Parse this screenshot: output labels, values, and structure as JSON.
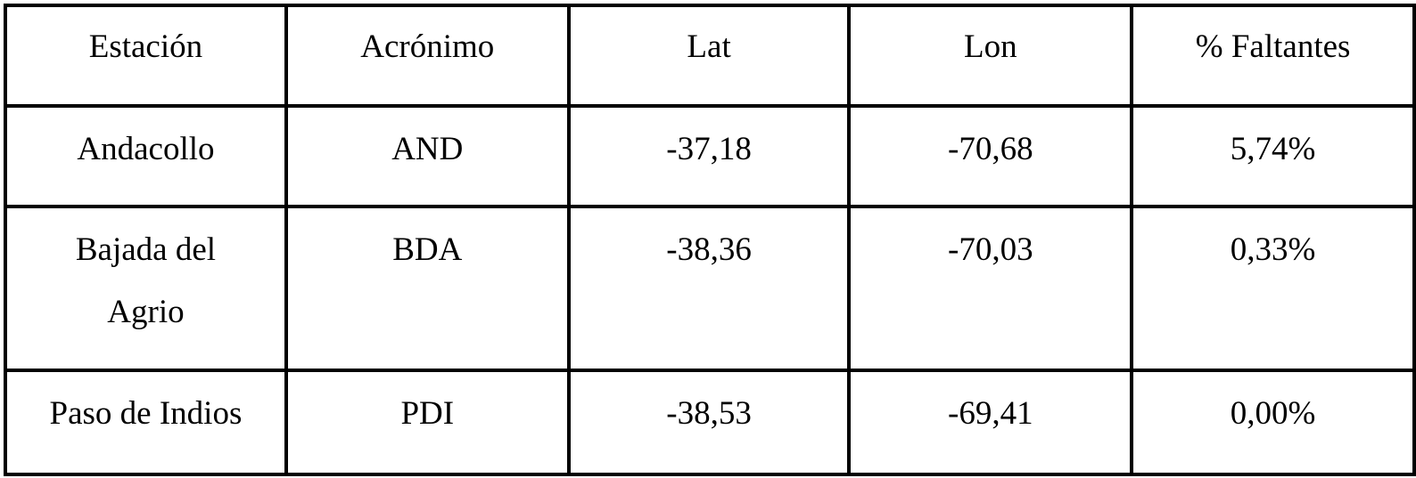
{
  "table": {
    "headers": [
      "Estación",
      "Acrónimo",
      "Lat",
      "Lon",
      "% Faltantes"
    ],
    "rows": [
      [
        "Andacollo",
        "AND",
        "-37,18",
        "-70,68",
        "5,74%"
      ],
      [
        "Bajada del Agrio",
        "BDA",
        "-38,36",
        "-70,03",
        "0,33%"
      ],
      [
        "Paso de Indios",
        "PDI",
        "-38,53",
        "-69,41",
        "0,00%"
      ]
    ]
  }
}
